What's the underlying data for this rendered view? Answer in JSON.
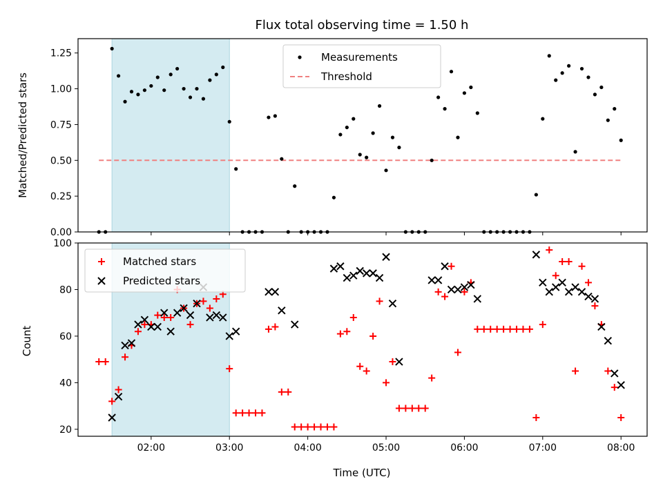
{
  "chart_data": [
    {
      "type": "scatter",
      "title": "Flux total observing time = 1.50 h",
      "ylabel": "Matched/Predicted stars",
      "xlabel": "",
      "xlim": [
        "01:04",
        "08:20"
      ],
      "ylim": [
        0,
        1.35
      ],
      "x_ticks": [
        "02:00",
        "03:00",
        "04:00",
        "05:00",
        "06:00",
        "07:00",
        "08:00"
      ],
      "y_ticks": [
        "0.00",
        "0.25",
        "0.50",
        "0.75",
        "1.00",
        "1.25"
      ],
      "shaded_interval": {
        "start": "01:30",
        "end": "03:00",
        "color": "#d4ebf1"
      },
      "legend": {
        "placement": "top-center",
        "entries": [
          "Measurements",
          "Threshold"
        ]
      },
      "threshold": {
        "name": "Threshold",
        "value": 0.5,
        "x_start": "01:20",
        "x_end": "08:00",
        "color": "#f08080"
      },
      "series": [
        {
          "name": "Measurements",
          "color": "#000000",
          "x": [
            "01:20",
            "01:25",
            "01:30",
            "01:35",
            "01:40",
            "01:45",
            "01:50",
            "01:55",
            "02:00",
            "02:05",
            "02:10",
            "02:15",
            "02:20",
            "02:25",
            "02:30",
            "02:35",
            "02:40",
            "02:45",
            "02:50",
            "02:55",
            "03:00",
            "03:05",
            "03:10",
            "03:15",
            "03:20",
            "03:25",
            "03:30",
            "03:35",
            "03:40",
            "03:45",
            "03:50",
            "03:55",
            "04:00",
            "04:05",
            "04:10",
            "04:15",
            "04:20",
            "04:25",
            "04:30",
            "04:35",
            "04:40",
            "04:45",
            "04:50",
            "04:55",
            "05:00",
            "05:05",
            "05:10",
            "05:15",
            "05:20",
            "05:25",
            "05:30",
            "05:35",
            "05:40",
            "05:45",
            "05:50",
            "05:55",
            "06:00",
            "06:05",
            "06:10",
            "06:15",
            "06:20",
            "06:25",
            "06:30",
            "06:35",
            "06:40",
            "06:45",
            "06:50",
            "06:55",
            "07:00",
            "07:05",
            "07:10",
            "07:15",
            "07:20",
            "07:25",
            "07:30",
            "07:35",
            "07:40",
            "07:45",
            "07:50",
            "07:55",
            "08:00"
          ],
          "y": [
            0,
            0,
            1.28,
            1.09,
            0.91,
            0.98,
            0.96,
            0.99,
            1.02,
            1.08,
            0.99,
            1.1,
            1.14,
            1.0,
            0.94,
            1.0,
            0.93,
            1.06,
            1.1,
            1.15,
            0.77,
            0.44,
            0,
            0,
            0,
            0,
            0.8,
            0.81,
            0.51,
            0,
            0.32,
            0,
            0,
            0,
            0,
            0,
            0.24,
            0.68,
            0.73,
            0.79,
            0.54,
            0.52,
            0.69,
            0.88,
            0.43,
            0.66,
            0.59,
            0,
            0,
            0,
            0,
            0.5,
            0.94,
            0.86,
            1.12,
            0.66,
            0.97,
            1.01,
            0.83,
            0,
            0,
            0,
            0,
            0,
            0,
            0,
            0,
            0.26,
            0.79,
            1.23,
            1.06,
            1.11,
            1.16,
            0.56,
            1.14,
            1.08,
            0.96,
            1.01,
            0.78,
            0.86,
            0.64
          ]
        }
      ]
    },
    {
      "type": "scatter",
      "title": "",
      "xlabel": "Time (UTC)",
      "ylabel": "Count",
      "xlim": [
        "01:04",
        "08:20"
      ],
      "ylim": [
        17,
        100
      ],
      "x_ticks": [
        "02:00",
        "03:00",
        "04:00",
        "05:00",
        "06:00",
        "07:00",
        "08:00"
      ],
      "y_ticks": [
        "20",
        "40",
        "60",
        "80",
        "100"
      ],
      "shaded_interval": {
        "start": "01:30",
        "end": "03:00",
        "color": "#d4ebf1"
      },
      "legend": {
        "placement": "top-left",
        "entries": [
          "Matched stars",
          "Predicted stars"
        ]
      },
      "series": [
        {
          "name": "Matched stars",
          "marker": "plus",
          "color": "#ff0000",
          "x": [
            "01:20",
            "01:25",
            "01:30",
            "01:35",
            "01:40",
            "01:45",
            "01:50",
            "01:55",
            "02:00",
            "02:05",
            "02:10",
            "02:15",
            "02:20",
            "02:25",
            "02:30",
            "02:35",
            "02:40",
            "02:45",
            "02:50",
            "02:55",
            "03:00",
            "03:05",
            "03:10",
            "03:15",
            "03:20",
            "03:25",
            "03:30",
            "03:35",
            "03:40",
            "03:45",
            "03:50",
            "03:55",
            "04:00",
            "04:05",
            "04:10",
            "04:15",
            "04:20",
            "04:25",
            "04:30",
            "04:35",
            "04:40",
            "04:45",
            "04:50",
            "04:55",
            "05:00",
            "05:05",
            "05:10",
            "05:15",
            "05:20",
            "05:25",
            "05:30",
            "05:35",
            "05:40",
            "05:45",
            "05:50",
            "05:55",
            "06:00",
            "06:05",
            "06:10",
            "06:15",
            "06:20",
            "06:25",
            "06:30",
            "06:35",
            "06:40",
            "06:45",
            "06:50",
            "06:55",
            "07:00",
            "07:05",
            "07:10",
            "07:15",
            "07:20",
            "07:25",
            "07:30",
            "07:35",
            "07:40",
            "07:45",
            "07:50",
            "07:55",
            "08:00"
          ],
          "y": [
            49,
            49,
            32,
            37,
            51,
            56,
            62,
            65,
            65,
            69,
            68,
            68,
            80,
            72,
            65,
            74,
            75,
            72,
            76,
            78,
            46,
            27,
            27,
            27,
            27,
            27,
            63,
            64,
            36,
            36,
            21,
            21,
            21,
            21,
            21,
            21,
            21,
            61,
            62,
            68,
            47,
            45,
            60,
            75,
            40,
            49,
            29,
            29,
            29,
            29,
            29,
            42,
            79,
            77,
            90,
            53,
            79,
            83,
            63,
            63,
            63,
            63,
            63,
            63,
            63,
            63,
            63,
            25,
            65,
            97,
            86,
            92,
            92,
            45,
            90,
            83,
            73,
            65,
            45,
            38,
            25
          ]
        },
        {
          "name": "Predicted stars",
          "marker": "x",
          "color": "#000000",
          "x": [
            "01:30",
            "01:35",
            "01:40",
            "01:45",
            "01:50",
            "01:55",
            "02:00",
            "02:05",
            "02:10",
            "02:15",
            "02:20",
            "02:25",
            "02:30",
            "02:35",
            "02:40",
            "02:45",
            "02:50",
            "02:55",
            "03:00",
            "03:05",
            "03:30",
            "03:35",
            "03:40",
            "03:50",
            "04:20",
            "04:25",
            "04:30",
            "04:35",
            "04:40",
            "04:45",
            "04:50",
            "04:55",
            "05:00",
            "05:05",
            "05:10",
            "05:35",
            "05:40",
            "05:45",
            "05:50",
            "05:55",
            "06:00",
            "06:05",
            "06:10",
            "06:55",
            "07:00",
            "07:05",
            "07:10",
            "07:15",
            "07:20",
            "07:25",
            "07:30",
            "07:35",
            "07:40",
            "07:45",
            "07:50",
            "07:55",
            "08:00"
          ],
          "y": [
            25,
            34,
            56,
            57,
            65,
            67,
            64,
            64,
            70,
            62,
            70,
            72,
            69,
            74,
            81,
            68,
            69,
            68,
            60,
            62,
            79,
            79,
            71,
            65,
            89,
            90,
            85,
            86,
            88,
            87,
            87,
            85,
            94,
            74,
            49,
            84,
            84,
            90,
            80,
            80,
            81,
            82,
            76,
            95,
            83,
            79,
            81,
            83,
            79,
            81,
            79,
            77,
            76,
            64,
            58,
            44,
            39
          ]
        }
      ]
    }
  ]
}
